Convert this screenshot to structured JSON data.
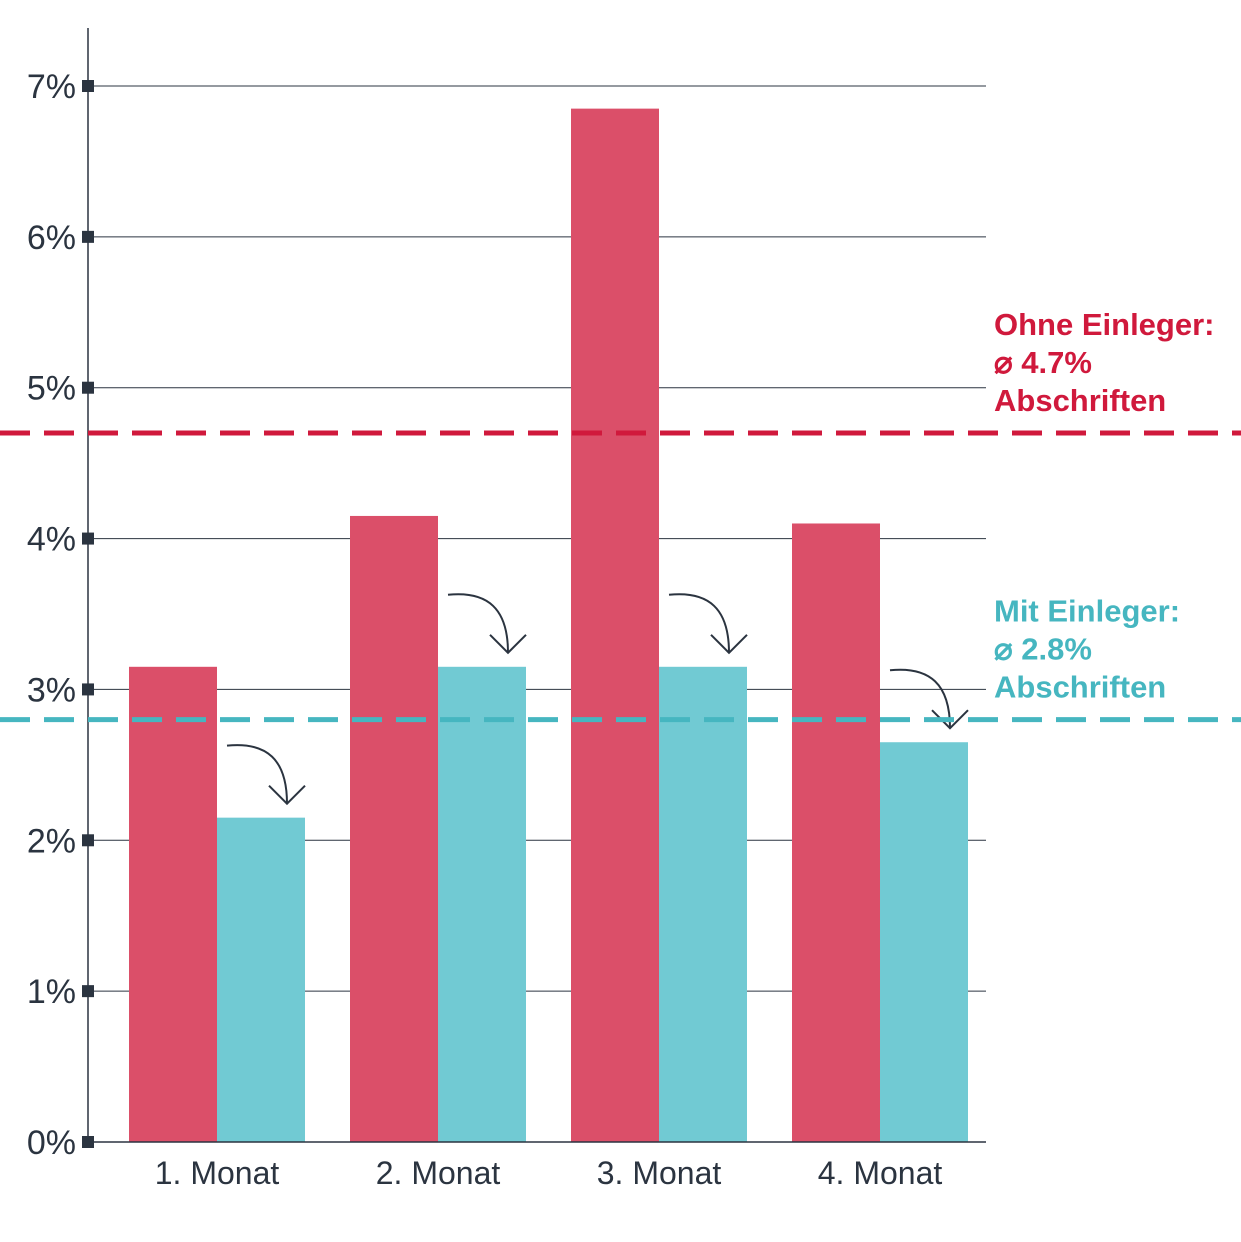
{
  "chart_data": {
    "type": "bar",
    "categories": [
      "1. Monat",
      "2. Monat",
      "3. Monat",
      "4. Monat"
    ],
    "series": [
      {
        "name": "Ohne Einleger",
        "color": "#db4f69",
        "values": [
          3.15,
          4.15,
          6.85,
          4.1
        ]
      },
      {
        "name": "Mit Einleger",
        "color": "#71cad3",
        "values": [
          2.15,
          3.15,
          3.15,
          2.65
        ]
      }
    ],
    "ylim": [
      0,
      7
    ],
    "yticks": [
      0,
      1,
      2,
      3,
      4,
      5,
      6,
      7
    ],
    "ytick_labels": [
      "0%",
      "1%",
      "2%",
      "3%",
      "4%",
      "5%",
      "6%",
      "7%"
    ],
    "grid": true,
    "reference_lines": [
      {
        "name": "Ohne Einleger",
        "value": 4.7,
        "color": "#d0193c",
        "label_lines": [
          "Ohne Einleger:",
          "⌀ 4.7%",
          "Abschriften"
        ]
      },
      {
        "name": "Mit Einleger",
        "value": 2.8,
        "color": "#46b6c0",
        "label_lines": [
          "Mit Einleger:",
          "⌀ 2.8%",
          "Abschriften"
        ]
      }
    ]
  },
  "colors": {
    "axis": "#2b3440",
    "grid": "#2b3440"
  }
}
